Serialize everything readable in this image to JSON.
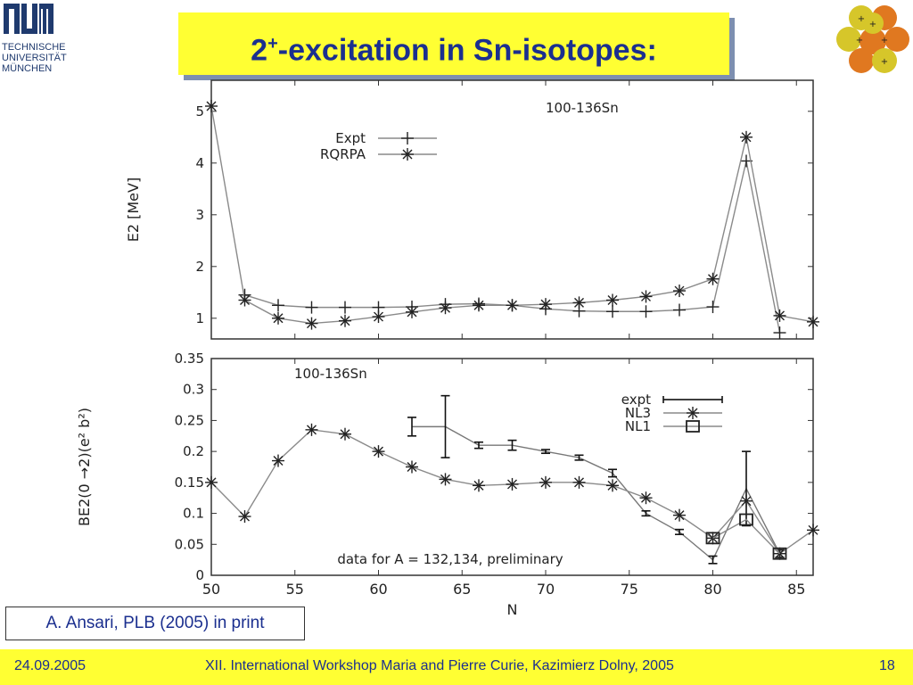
{
  "logo": {
    "mark": "TUM",
    "lines": [
      "TECHNISCHE",
      "UNIVERSITÄT",
      "MÜNCHEN"
    ]
  },
  "title": {
    "main": "2",
    "sup": "+",
    "rest": "-excitation in Sn-isotopes:"
  },
  "citation": "A. Ansari, PLB (2005) in print",
  "footer": {
    "date": "24.09.2005",
    "event": "XII. International Workshop Maria and Pierre Curie, Kazimierz Dolny, 2005",
    "page": "18"
  },
  "colors": {
    "accent": "#ffff33",
    "title": "#1b2f8f",
    "atom_orange": "#e07820",
    "atom_yellow": "#d6c62a"
  },
  "chart_data": [
    {
      "type": "line",
      "annotation": "100-136Sn",
      "xlabel": "",
      "ylabel": "E2 [MeV]",
      "xlim": [
        50,
        86
      ],
      "ylim": [
        0.6,
        5.6
      ],
      "yticks": [
        1,
        2,
        3,
        4,
        5
      ],
      "legend_position": "top-left",
      "series": [
        {
          "name": "Expt",
          "marker": "plus",
          "x": [
            52,
            54,
            56,
            58,
            60,
            62,
            64,
            66,
            68,
            70,
            72,
            74,
            76,
            78,
            80,
            82,
            84
          ],
          "values": [
            1.45,
            1.25,
            1.21,
            1.21,
            1.21,
            1.22,
            1.27,
            1.28,
            1.25,
            1.18,
            1.14,
            1.13,
            1.13,
            1.16,
            1.22,
            4.04,
            0.72
          ]
        },
        {
          "name": "RQRPA",
          "marker": "star",
          "x": [
            50,
            52,
            54,
            56,
            58,
            60,
            62,
            64,
            66,
            68,
            70,
            72,
            74,
            76,
            78,
            80,
            82,
            84,
            86
          ],
          "values": [
            5.1,
            1.35,
            1.0,
            0.9,
            0.95,
            1.03,
            1.12,
            1.2,
            1.25,
            1.25,
            1.27,
            1.3,
            1.35,
            1.42,
            1.53,
            1.76,
            4.5,
            1.05,
            0.93
          ]
        }
      ]
    },
    {
      "type": "line",
      "annotation": "100-136Sn",
      "note": "data for A = 132,134, preliminary",
      "xlabel": "N",
      "ylabel": "BE2(0 →2)(e² b²)",
      "xlim": [
        50,
        86
      ],
      "ylim": [
        0,
        0.35
      ],
      "xticks": [
        50,
        55,
        60,
        65,
        70,
        75,
        80,
        85
      ],
      "yticks": [
        0,
        0.05,
        0.1,
        0.15,
        0.2,
        0.25,
        0.3,
        0.35
      ],
      "ytick_labels": [
        "0",
        "0.05",
        "0.1",
        "0.15",
        "0.2",
        "0.25",
        "0.3",
        "0.35"
      ],
      "legend_position": "top-right",
      "series": [
        {
          "name": "expt",
          "marker": "errorbar",
          "x": [
            62,
            64,
            66,
            68,
            70,
            72,
            74,
            76,
            78,
            80,
            82,
            84
          ],
          "values": [
            0.24,
            0.24,
            0.21,
            0.21,
            0.2,
            0.19,
            0.165,
            0.1,
            0.07,
            0.025,
            0.14,
            0.035
          ],
          "errors": [
            0.015,
            0.05,
            0.005,
            0.008,
            0.003,
            0.004,
            0.006,
            0.004,
            0.004,
            0.006,
            0.06,
            0.006
          ]
        },
        {
          "name": "NL3",
          "marker": "star",
          "x": [
            50,
            52,
            54,
            56,
            58,
            60,
            62,
            64,
            66,
            68,
            70,
            72,
            74,
            76,
            78,
            80,
            82,
            84,
            86
          ],
          "values": [
            0.15,
            0.095,
            0.185,
            0.235,
            0.228,
            0.2,
            0.175,
            0.155,
            0.145,
            0.147,
            0.15,
            0.15,
            0.145,
            0.125,
            0.097,
            0.06,
            0.12,
            0.035,
            0.073
          ]
        },
        {
          "name": "NL1",
          "marker": "square",
          "x": [
            80,
            82,
            84
          ],
          "values": [
            0.06,
            0.09,
            0.035
          ]
        }
      ]
    }
  ]
}
